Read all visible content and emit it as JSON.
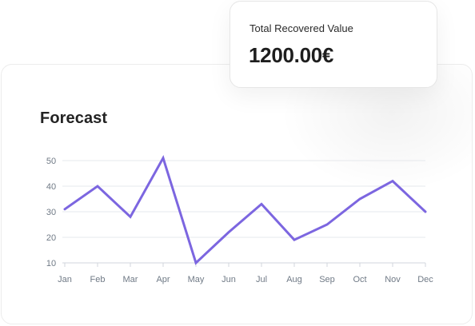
{
  "stat_card": {
    "label": "Total Recovered Value",
    "value": "1200.00€"
  },
  "chart_card": {
    "title": "Forecast"
  },
  "colors": {
    "line": "#7c66e0",
    "grid": "#e6e8ec",
    "axis": "#d2d6dc",
    "tick_text": "#707a86"
  },
  "chart_data": {
    "type": "line",
    "title": "Forecast",
    "categories": [
      "Jan",
      "Feb",
      "Mar",
      "Apr",
      "May",
      "Jun",
      "Jul",
      "Aug",
      "Sep",
      "Oct",
      "Nov",
      "Dec"
    ],
    "values": [
      31,
      40,
      28,
      51,
      10,
      22,
      33,
      19,
      25,
      35,
      42,
      30
    ],
    "y_ticks": [
      10,
      20,
      30,
      40,
      50
    ],
    "ylim": [
      10,
      50
    ],
    "xlabel": "",
    "ylabel": "",
    "grid": true,
    "legend": "none"
  }
}
